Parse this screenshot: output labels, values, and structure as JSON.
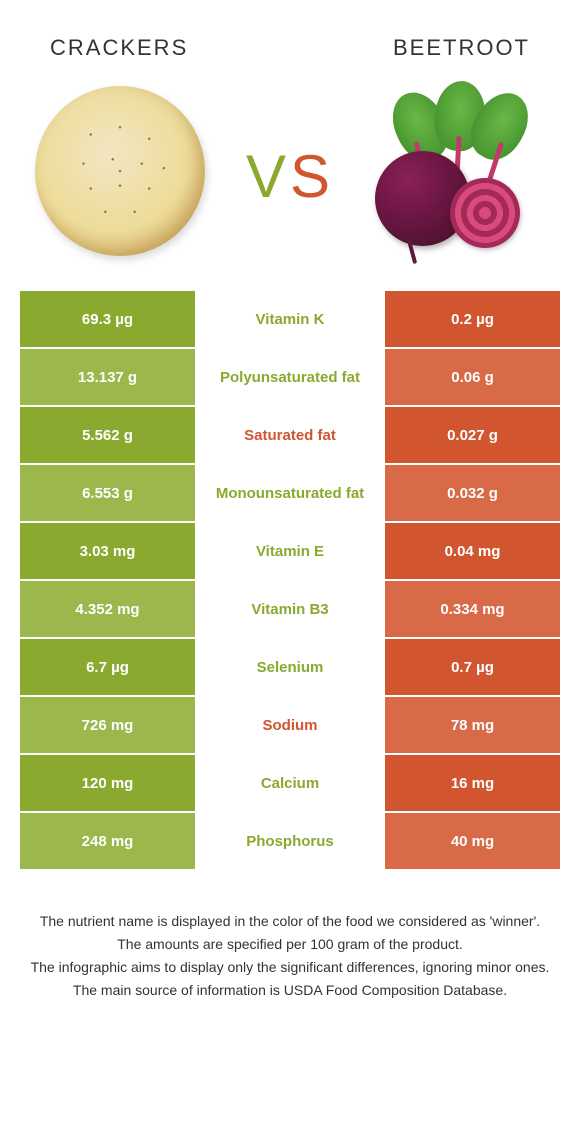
{
  "header": {
    "left_title": "Crackers",
    "right_title": "Beetroot",
    "vs": {
      "v": "V",
      "s": "S"
    }
  },
  "colors": {
    "left_bg_dark": "#8aa92f",
    "left_bg_light": "#9cb74c",
    "right_bg_dark": "#d1552e",
    "right_bg_light": "#d86a47",
    "label_green": "#8aa92f",
    "label_orange": "#d1552e"
  },
  "rows": [
    {
      "left": "69.3 µg",
      "label": "Vitamin K",
      "right": "0.2 µg",
      "winner": "left"
    },
    {
      "left": "13.137 g",
      "label": "Polyunsaturated fat",
      "right": "0.06 g",
      "winner": "left"
    },
    {
      "left": "5.562 g",
      "label": "Saturated fat",
      "right": "0.027 g",
      "winner": "right"
    },
    {
      "left": "6.553 g",
      "label": "Monounsaturated fat",
      "right": "0.032 g",
      "winner": "left"
    },
    {
      "left": "3.03 mg",
      "label": "Vitamin E",
      "right": "0.04 mg",
      "winner": "left"
    },
    {
      "left": "4.352 mg",
      "label": "Vitamin B3",
      "right": "0.334 mg",
      "winner": "left"
    },
    {
      "left": "6.7 µg",
      "label": "Selenium",
      "right": "0.7 µg",
      "winner": "left"
    },
    {
      "left": "726 mg",
      "label": "Sodium",
      "right": "78 mg",
      "winner": "right"
    },
    {
      "left": "120 mg",
      "label": "Calcium",
      "right": "16 mg",
      "winner": "left"
    },
    {
      "left": "248 mg",
      "label": "Phosphorus",
      "right": "40 mg",
      "winner": "left"
    }
  ],
  "footer": {
    "line1": "The nutrient name is displayed in the color of the food we considered as 'winner'.",
    "line2": "The amounts are specified per 100 gram of the product.",
    "line3": "The infographic aims to display only the significant differences, ignoring minor ones.",
    "line4": "The main source of information is USDA Food Composition Database."
  }
}
